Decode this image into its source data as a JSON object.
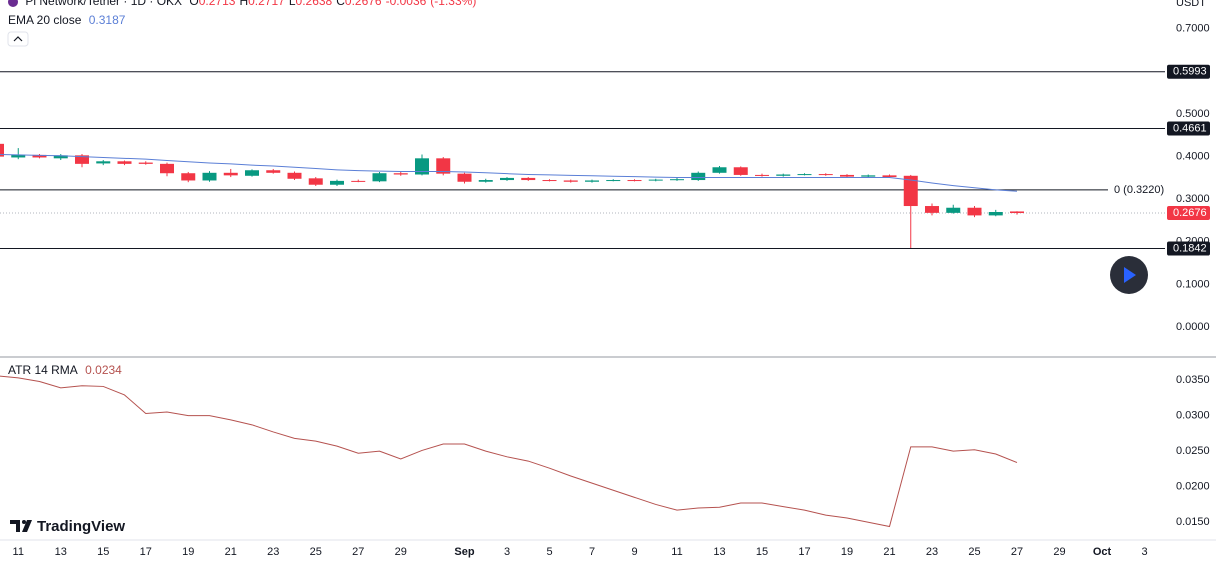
{
  "chart_data": [
    {
      "type": "candlestick",
      "title": "Pi Network/Tether · 1D · OKX",
      "currency": "USDT",
      "legend": {
        "keys": [
          "O",
          "H",
          "L",
          "C"
        ],
        "values": [
          0.2713,
          0.2717,
          0.2638,
          0.2676
        ],
        "change": -0.0036,
        "change_pct": {
          "value": -1.33,
          "label": "(-1.33%)"
        }
      },
      "categories": [
        null,
        "11",
        null,
        "13",
        null,
        "15",
        null,
        "17",
        null,
        "19",
        null,
        "21",
        null,
        "23",
        null,
        "25",
        null,
        "27",
        null,
        "29",
        null,
        null,
        "Sep",
        null,
        "3",
        null,
        "5",
        null,
        "7",
        null,
        "9",
        null,
        "11",
        null,
        "13",
        null,
        "15",
        null,
        "17",
        null,
        "19",
        null,
        "21",
        null,
        "23",
        null,
        "25",
        null,
        "27",
        null,
        "29",
        null,
        "Oct",
        null,
        "3"
      ],
      "open": [
        0.43,
        0.398,
        0.404,
        0.396,
        0.403,
        0.384,
        0.389,
        0.386,
        0.383,
        0.361,
        0.344,
        0.362,
        0.355,
        0.368,
        0.362,
        0.349,
        0.334,
        0.343,
        0.342,
        0.361,
        0.358,
        0.396,
        0.36,
        0.341,
        0.345,
        0.35,
        0.345,
        0.344,
        0.341,
        0.344,
        0.345,
        0.344,
        0.346,
        0.345,
        0.362,
        0.375,
        0.357,
        0.355,
        0.358,
        0.359,
        0.357,
        0.353,
        0.356,
        0.355,
        0.284,
        0.268,
        0.28,
        0.262,
        0.2713,
        null,
        null,
        null,
        null,
        null,
        null
      ],
      "high": [
        0.432,
        0.42,
        0.406,
        0.406,
        0.406,
        0.392,
        0.391,
        0.389,
        0.386,
        0.364,
        0.366,
        0.371,
        0.37,
        0.371,
        0.365,
        0.352,
        0.346,
        0.346,
        0.364,
        0.364,
        0.405,
        0.399,
        0.362,
        0.348,
        0.352,
        0.352,
        0.347,
        0.346,
        0.346,
        0.347,
        0.347,
        0.348,
        0.35,
        0.365,
        0.378,
        0.377,
        0.36,
        0.36,
        0.361,
        0.361,
        0.359,
        0.358,
        0.358,
        0.357,
        0.29,
        0.287,
        0.284,
        0.275,
        0.2717,
        null,
        null,
        null,
        null,
        null,
        null
      ],
      "low": [
        0.398,
        0.394,
        0.396,
        0.392,
        0.375,
        0.38,
        0.38,
        0.381,
        0.354,
        0.34,
        0.341,
        0.352,
        0.353,
        0.36,
        0.345,
        0.331,
        0.331,
        0.34,
        0.34,
        0.355,
        0.356,
        0.356,
        0.337,
        0.339,
        0.343,
        0.343,
        0.342,
        0.339,
        0.339,
        0.342,
        0.342,
        0.342,
        0.343,
        0.343,
        0.36,
        0.355,
        0.353,
        0.353,
        0.356,
        0.355,
        0.351,
        0.351,
        0.35,
        0.1842,
        0.262,
        0.266,
        0.258,
        0.26,
        0.2638,
        null,
        null,
        null,
        null,
        null,
        null
      ],
      "close": [
        0.4,
        0.404,
        0.398,
        0.403,
        0.383,
        0.389,
        0.383,
        0.383,
        0.361,
        0.344,
        0.362,
        0.356,
        0.368,
        0.362,
        0.348,
        0.334,
        0.343,
        0.342,
        0.361,
        0.358,
        0.396,
        0.36,
        0.341,
        0.345,
        0.35,
        0.345,
        0.344,
        0.341,
        0.344,
        0.345,
        0.344,
        0.346,
        0.347,
        0.362,
        0.375,
        0.357,
        0.355,
        0.358,
        0.359,
        0.357,
        0.353,
        0.356,
        0.352,
        0.284,
        0.268,
        0.28,
        0.262,
        0.27,
        0.2676,
        null,
        null,
        null,
        null,
        null,
        null
      ],
      "up_color": "#089981",
      "down_color": "#f23645",
      "ema": {
        "name": "EMA 20 close",
        "value": 0.3187,
        "color": "#5b7fd6",
        "values": [
          0.405,
          0.404,
          0.403,
          0.402,
          0.4,
          0.398,
          0.396,
          0.394,
          0.391,
          0.388,
          0.385,
          0.383,
          0.38,
          0.378,
          0.375,
          0.372,
          0.369,
          0.367,
          0.366,
          0.365,
          0.365,
          0.365,
          0.364,
          0.362,
          0.36,
          0.358,
          0.357,
          0.356,
          0.355,
          0.354,
          0.353,
          0.352,
          0.351,
          0.351,
          0.351,
          0.351,
          0.351,
          0.351,
          0.351,
          0.351,
          0.351,
          0.351,
          0.351,
          0.345,
          0.338,
          0.332,
          0.327,
          0.322,
          0.3187,
          null,
          null,
          null,
          null,
          null,
          null
        ]
      },
      "levels": [
        0.5993,
        0.4661,
        0.1842
      ],
      "fib_level": {
        "value": 0.322,
        "label": "0 (0.3220)"
      },
      "ylim": [
        -0.068,
        0.7676
      ],
      "yticks": [
        {
          "value": 0.7,
          "label": "0.7000"
        },
        {
          "value": 0.5,
          "label": "0.5000"
        },
        {
          "value": 0.4,
          "label": "0.4000"
        },
        {
          "value": 0.3,
          "label": "0.3000"
        },
        {
          "value": 0.2,
          "label": "0.2000"
        },
        {
          "value": 0.1,
          "label": "0.1000"
        },
        {
          "value": 0,
          "label": "0.0000"
        }
      ],
      "branding": "TradingView"
    },
    {
      "type": "line",
      "name": "ATR 14 RMA",
      "value": 0.0234,
      "color": "#b5524f",
      "values": [
        0.0356,
        0.0353,
        0.0348,
        0.0339,
        0.0342,
        0.0341,
        0.0329,
        0.0303,
        0.0305,
        0.03,
        0.03,
        0.0294,
        0.0287,
        0.0277,
        0.0268,
        0.0264,
        0.0257,
        0.0247,
        0.025,
        0.0239,
        0.0251,
        0.026,
        0.026,
        0.025,
        0.0242,
        0.0236,
        0.0226,
        0.0215,
        0.0205,
        0.0195,
        0.0185,
        0.0175,
        0.0167,
        0.017,
        0.0171,
        0.0177,
        0.0177,
        0.0172,
        0.0167,
        0.016,
        0.0156,
        0.015,
        0.0144,
        0.0256,
        0.0256,
        0.025,
        0.0252,
        0.0246,
        0.0234,
        null,
        null,
        null,
        null,
        null,
        null
      ],
      "ylim": [
        0.0125,
        0.0381
      ],
      "yticks": [
        {
          "value": 0.035,
          "label": "0.0350"
        },
        {
          "value": 0.03,
          "label": "0.0300"
        },
        {
          "value": 0.025,
          "label": "0.0250"
        },
        {
          "value": 0.02,
          "label": "0.0200"
        },
        {
          "value": 0.015,
          "label": "0.0150"
        }
      ]
    }
  ]
}
